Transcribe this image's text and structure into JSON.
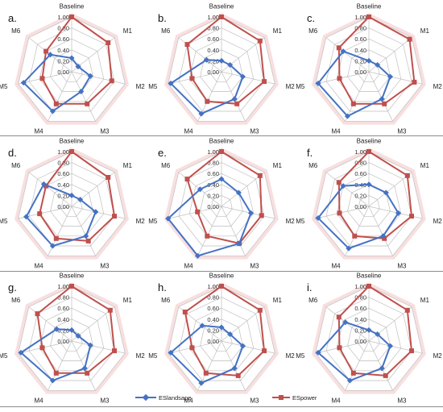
{
  "colors": {
    "landscape": "#4472C4",
    "power": "#C0504D",
    "band": "#F2C4C4",
    "grid": "#bfbfbf",
    "separator": "#8c8c8c"
  },
  "axes": [
    "Baseline",
    "M1",
    "M2",
    "M3",
    "M4",
    "M5",
    "M6"
  ],
  "ticks": [
    "0.00",
    "0.20",
    "0.40",
    "0.60",
    "0.80",
    "1.00"
  ],
  "legend": {
    "landscape": "ESlandsape",
    "power": "ESpower"
  },
  "chart_data": [
    {
      "type": "radar",
      "panel": "a.",
      "range": [
        0,
        1
      ],
      "series": [
        {
          "name": "ESlandsape",
          "values": [
            0.25,
            0.15,
            0.35,
            0.4,
            0.8,
            0.9,
            0.5
          ]
        },
        {
          "name": "ESpower",
          "values": [
            1.0,
            0.85,
            0.75,
            0.65,
            0.65,
            0.55,
            0.6
          ]
        }
      ]
    },
    {
      "type": "radar",
      "panel": "b.",
      "range": [
        0,
        1
      ],
      "series": [
        {
          "name": "ESlandsape",
          "values": [
            0.2,
            0.2,
            0.4,
            0.55,
            0.85,
            0.95,
            0.35
          ]
        },
        {
          "name": "ESpower",
          "values": [
            1.0,
            0.9,
            0.8,
            0.65,
            0.6,
            0.55,
            0.8
          ]
        }
      ]
    },
    {
      "type": "radar",
      "panel": "c.",
      "range": [
        0,
        1
      ],
      "series": [
        {
          "name": "ESlandsape",
          "values": [
            0.2,
            0.2,
            0.4,
            0.55,
            0.9,
            0.95,
            0.6
          ]
        },
        {
          "name": "ESpower",
          "values": [
            1.0,
            0.95,
            0.85,
            0.65,
            0.65,
            0.55,
            0.7
          ]
        }
      ]
    },
    {
      "type": "radar",
      "panel": "d.",
      "range": [
        0,
        1
      ],
      "series": [
        {
          "name": "ESlandsape",
          "values": [
            0.2,
            0.2,
            0.45,
            0.6,
            0.8,
            0.85,
            0.65
          ]
        },
        {
          "name": "ESpower",
          "values": [
            1.0,
            0.85,
            0.8,
            0.7,
            0.65,
            0.6,
            0.6
          ]
        }
      ]
    },
    {
      "type": "radar",
      "panel": "e.",
      "range": [
        0,
        1
      ],
      "series": [
        {
          "name": "ESlandsape",
          "values": [
            0.5,
            0.4,
            0.55,
            0.75,
            1.0,
            1.0,
            0.5
          ]
        },
        {
          "name": "ESpower",
          "values": [
            1.0,
            0.9,
            0.75,
            0.75,
            0.6,
            0.45,
            0.8
          ]
        }
      ]
    },
    {
      "type": "radar",
      "panel": "f.",
      "range": [
        0,
        1
      ],
      "series": [
        {
          "name": "ESlandsape",
          "values": [
            0.4,
            0.4,
            0.55,
            0.6,
            0.85,
            0.95,
            0.6
          ]
        },
        {
          "name": "ESpower",
          "values": [
            1.0,
            0.9,
            0.8,
            0.65,
            0.6,
            0.55,
            0.7
          ]
        }
      ]
    },
    {
      "type": "radar",
      "panel": "g.",
      "range": [
        0,
        1
      ],
      "series": [
        {
          "name": "ESlandsape",
          "values": [
            0.2,
            0.15,
            0.35,
            0.55,
            0.8,
            0.95,
            0.35
          ]
        },
        {
          "name": "ESpower",
          "values": [
            1.0,
            0.9,
            0.8,
            0.65,
            0.65,
            0.55,
            0.8
          ]
        }
      ]
    },
    {
      "type": "radar",
      "panel": "h.",
      "range": [
        0,
        1
      ],
      "series": [
        {
          "name": "ESlandsape",
          "values": [
            0.25,
            0.2,
            0.4,
            0.55,
            0.85,
            0.95,
            0.45
          ]
        },
        {
          "name": "ESpower",
          "values": [
            1.0,
            0.9,
            0.8,
            0.7,
            0.65,
            0.55,
            0.85
          ]
        }
      ]
    },
    {
      "type": "radar",
      "panel": "i.",
      "range": [
        0,
        1
      ],
      "series": [
        {
          "name": "ESlandsape",
          "values": [
            0.2,
            0.2,
            0.4,
            0.55,
            0.8,
            0.95,
            0.55
          ]
        },
        {
          "name": "ESpower",
          "values": [
            1.0,
            0.9,
            0.8,
            0.7,
            0.65,
            0.55,
            0.7
          ]
        }
      ]
    }
  ]
}
